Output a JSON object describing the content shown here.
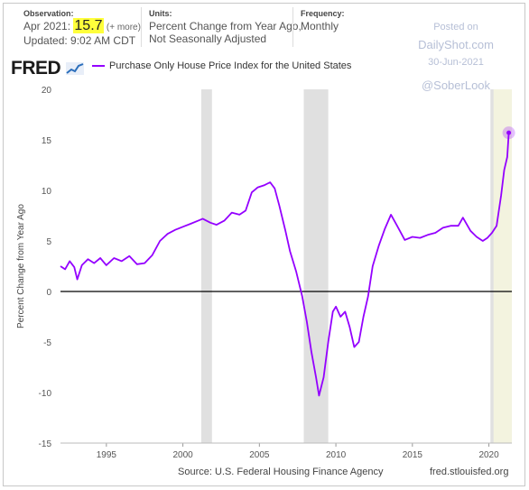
{
  "header": {
    "observation_label": "Observation:",
    "observation_period": "Apr 2021:",
    "observation_value": "15.7",
    "observation_more": "(+ more)",
    "updated": "Updated: 9:02 AM CDT",
    "units_label": "Units:",
    "units_line1": "Percent Change from Year Ago,",
    "units_line2": "Not Seasonally Adjusted",
    "frequency_label": "Frequency:",
    "frequency_value": "Monthly"
  },
  "watermark": {
    "posted_on": "Posted on",
    "site": "DailyShot.com",
    "date": "30-Jun-2021",
    "handle": "@SoberLook"
  },
  "logo_text": "FRED",
  "footer": {
    "source": "Source: U.S. Federal Housing Finance Agency",
    "site": "fred.stlouisfed.org"
  },
  "colors": {
    "series": "#9400ff",
    "recession": "#e0e0e0",
    "highlight_recent": "#f3f3df",
    "zero_line": "#000000",
    "grid": "#e6e6e6"
  },
  "chart_data": {
    "type": "line",
    "title": "",
    "xlabel": "",
    "ylabel": "Percent Change from Year Ago",
    "series": [
      {
        "name": "Purchase Only House Price Index for the United States",
        "points": [
          [
            1992.0,
            2.5
          ],
          [
            1992.3,
            2.2
          ],
          [
            1992.6,
            3.0
          ],
          [
            1992.9,
            2.4
          ],
          [
            1993.1,
            1.2
          ],
          [
            1993.4,
            2.6
          ],
          [
            1993.8,
            3.2
          ],
          [
            1994.2,
            2.8
          ],
          [
            1994.6,
            3.3
          ],
          [
            1995.0,
            2.6
          ],
          [
            1995.5,
            3.3
          ],
          [
            1996.0,
            3.0
          ],
          [
            1996.5,
            3.5
          ],
          [
            1997.0,
            2.7
          ],
          [
            1997.5,
            2.8
          ],
          [
            1998.0,
            3.6
          ],
          [
            1998.5,
            5.0
          ],
          [
            1999.0,
            5.7
          ],
          [
            1999.5,
            6.1
          ],
          [
            2000.0,
            6.4
          ],
          [
            2000.5,
            6.7
          ],
          [
            2001.0,
            7.0
          ],
          [
            2001.3,
            7.2
          ],
          [
            2001.8,
            6.8
          ],
          [
            2002.2,
            6.6
          ],
          [
            2002.7,
            7.0
          ],
          [
            2003.2,
            7.8
          ],
          [
            2003.7,
            7.6
          ],
          [
            2004.1,
            8.0
          ],
          [
            2004.5,
            9.8
          ],
          [
            2004.9,
            10.3
          ],
          [
            2005.3,
            10.5
          ],
          [
            2005.7,
            10.8
          ],
          [
            2006.0,
            10.2
          ],
          [
            2006.3,
            8.5
          ],
          [
            2006.7,
            6.0
          ],
          [
            2007.0,
            4.0
          ],
          [
            2007.4,
            2.0
          ],
          [
            2007.8,
            -0.5
          ],
          [
            2008.1,
            -3.0
          ],
          [
            2008.4,
            -6.0
          ],
          [
            2008.7,
            -8.5
          ],
          [
            2008.9,
            -10.3
          ],
          [
            2009.2,
            -8.5
          ],
          [
            2009.5,
            -5.0
          ],
          [
            2009.8,
            -2.0
          ],
          [
            2010.0,
            -1.5
          ],
          [
            2010.3,
            -2.5
          ],
          [
            2010.6,
            -2.0
          ],
          [
            2010.9,
            -3.5
          ],
          [
            2011.2,
            -5.5
          ],
          [
            2011.5,
            -5.0
          ],
          [
            2011.8,
            -2.5
          ],
          [
            2012.1,
            -0.5
          ],
          [
            2012.4,
            2.5
          ],
          [
            2012.8,
            4.5
          ],
          [
            2013.2,
            6.2
          ],
          [
            2013.6,
            7.6
          ],
          [
            2014.0,
            6.5
          ],
          [
            2014.5,
            5.1
          ],
          [
            2015.0,
            5.4
          ],
          [
            2015.5,
            5.3
          ],
          [
            2016.0,
            5.6
          ],
          [
            2016.5,
            5.8
          ],
          [
            2017.0,
            6.3
          ],
          [
            2017.5,
            6.5
          ],
          [
            2018.0,
            6.5
          ],
          [
            2018.3,
            7.3
          ],
          [
            2018.8,
            6.0
          ],
          [
            2019.2,
            5.4
          ],
          [
            2019.6,
            5.0
          ],
          [
            2019.9,
            5.3
          ],
          [
            2020.2,
            5.8
          ],
          [
            2020.5,
            6.5
          ],
          [
            2020.8,
            9.5
          ],
          [
            2021.0,
            12.0
          ],
          [
            2021.2,
            13.3
          ],
          [
            2021.3,
            15.7
          ]
        ]
      }
    ],
    "recessions": [
      [
        2001.2,
        2001.9
      ],
      [
        2007.9,
        2009.5
      ],
      [
        2020.1,
        2020.3
      ]
    ],
    "highlight_range": [
      2020.2,
      2021.5
    ],
    "xlim": [
      1992.0,
      2021.5
    ],
    "ylim": [
      -15,
      20
    ],
    "xticks": [
      1995,
      2000,
      2005,
      2010,
      2015,
      2020
    ],
    "yticks": [
      -15,
      -10,
      -5,
      0,
      5,
      10,
      15,
      20
    ],
    "last_point": [
      2021.3,
      15.7
    ],
    "grid": false
  }
}
